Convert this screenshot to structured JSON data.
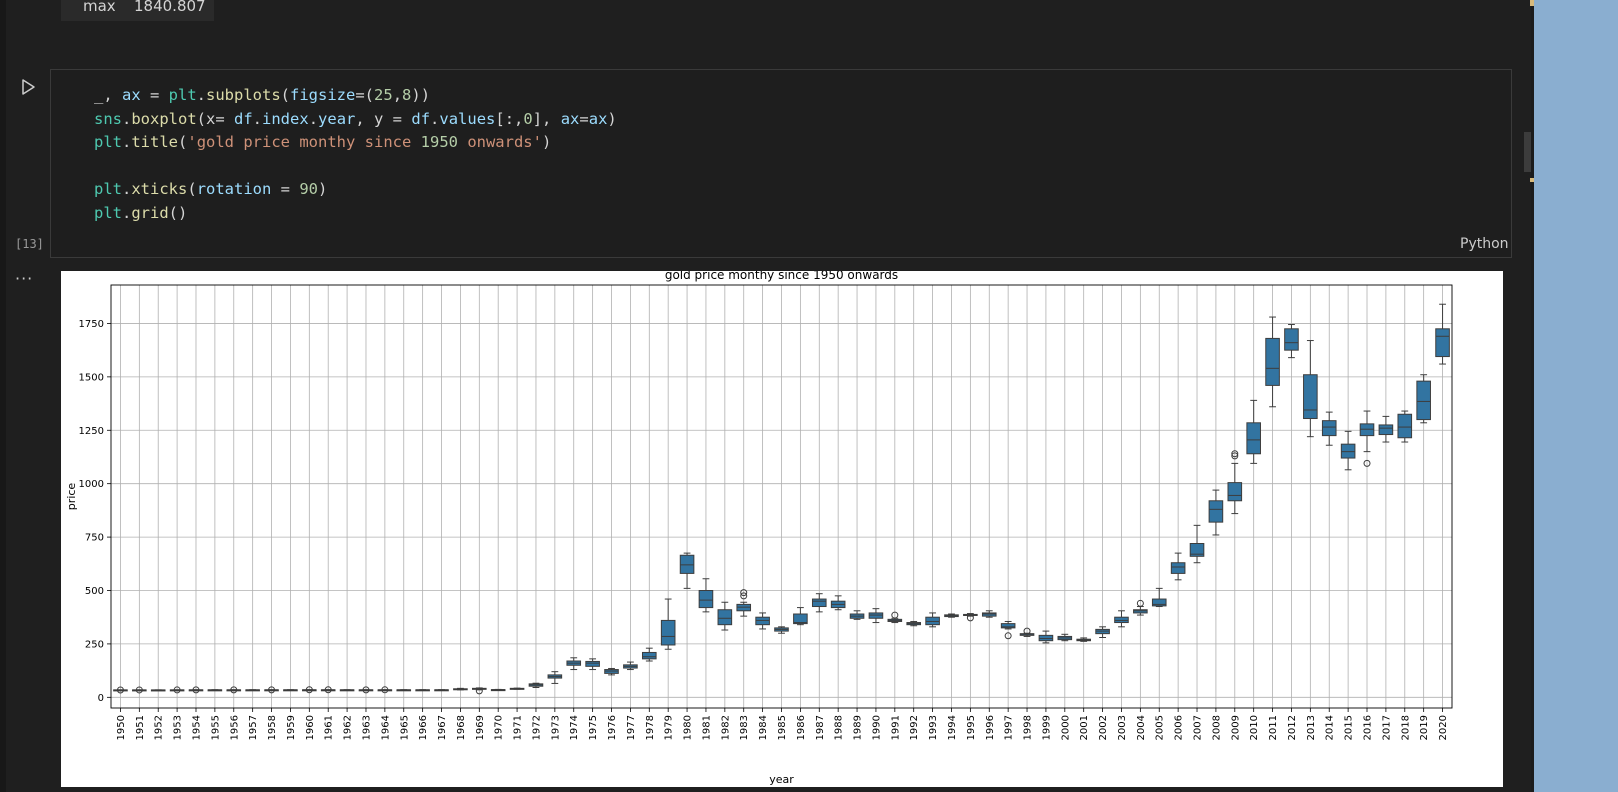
{
  "previous_output": {
    "stat_label": "max",
    "stat_value": "1840.807"
  },
  "cell": {
    "execution_count": "[13]",
    "language": "Python",
    "code_lines": [
      "_, ax = plt.subplots(figsize=(25,8))",
      "sns.boxplot(x= df.index.year, y = df.values[:,0], ax=ax)",
      "plt.title('gold price monthy since 1950 onwards')",
      "",
      "plt.xticks(rotation = 90)",
      "plt.grid()"
    ]
  },
  "icons": {
    "run": "play-icon",
    "more": "ellipsis-icon"
  },
  "colors": {
    "box_fill": "#3274a1",
    "editor_bg": "#1e1e1e",
    "panel_accent": "#8aaed0"
  },
  "chart_data": {
    "type": "boxplot",
    "title": "gold price monthy since 1950 onwards",
    "xlabel": "year",
    "ylabel": "price",
    "ylim": [
      -50,
      1930
    ],
    "yticks": [
      0,
      250,
      500,
      750,
      1000,
      1250,
      1500,
      1750
    ],
    "grid": true,
    "x_tick_rotation": 90,
    "categories": [
      "1950",
      "1951",
      "1952",
      "1953",
      "1954",
      "1955",
      "1956",
      "1957",
      "1958",
      "1959",
      "1960",
      "1961",
      "1962",
      "1963",
      "1964",
      "1965",
      "1966",
      "1967",
      "1968",
      "1969",
      "1970",
      "1971",
      "1972",
      "1973",
      "1974",
      "1975",
      "1976",
      "1977",
      "1978",
      "1979",
      "1980",
      "1981",
      "1982",
      "1983",
      "1984",
      "1985",
      "1986",
      "1987",
      "1988",
      "1989",
      "1990",
      "1991",
      "1992",
      "1993",
      "1994",
      "1995",
      "1996",
      "1997",
      "1998",
      "1999",
      "2000",
      "2001",
      "2002",
      "2003",
      "2004",
      "2005",
      "2006",
      "2007",
      "2008",
      "2009",
      "2010",
      "2011",
      "2012",
      "2013",
      "2014",
      "2015",
      "2016",
      "2017",
      "2018",
      "2019",
      "2020"
    ],
    "boxes": [
      {
        "min": 34.7,
        "q1": 34.7,
        "median": 34.7,
        "q3": 34.7,
        "max": 34.7,
        "outliers": [
          34.4
        ]
      },
      {
        "min": 34.7,
        "q1": 34.7,
        "median": 34.7,
        "q3": 34.7,
        "max": 34.7,
        "outliers": [
          34.5
        ]
      },
      {
        "min": 34.6,
        "q1": 34.6,
        "median": 34.6,
        "q3": 34.6,
        "max": 34.6,
        "outliers": []
      },
      {
        "min": 34.8,
        "q1": 34.8,
        "median": 34.8,
        "q3": 34.8,
        "max": 34.8,
        "outliers": [
          34.6
        ]
      },
      {
        "min": 35.0,
        "q1": 35.0,
        "median": 35.0,
        "q3": 35.0,
        "max": 35.0,
        "outliers": [
          34.8
        ]
      },
      {
        "min": 35.0,
        "q1": 35.0,
        "median": 35.0,
        "q3": 35.0,
        "max": 35.0,
        "outliers": []
      },
      {
        "min": 35.0,
        "q1": 35.0,
        "median": 35.0,
        "q3": 35.0,
        "max": 35.0,
        "outliers": [
          34.9
        ]
      },
      {
        "min": 35.0,
        "q1": 35.0,
        "median": 35.0,
        "q3": 35.0,
        "max": 35.0,
        "outliers": []
      },
      {
        "min": 35.1,
        "q1": 35.1,
        "median": 35.1,
        "q3": 35.1,
        "max": 35.1,
        "outliers": [
          35.0
        ]
      },
      {
        "min": 35.1,
        "q1": 35.1,
        "median": 35.1,
        "q3": 35.1,
        "max": 35.1,
        "outliers": []
      },
      {
        "min": 35.2,
        "q1": 35.2,
        "median": 35.2,
        "q3": 35.2,
        "max": 35.2,
        "outliers": [
          35.5
        ]
      },
      {
        "min": 35.2,
        "q1": 35.2,
        "median": 35.2,
        "q3": 35.2,
        "max": 35.2,
        "outliers": [
          35.5
        ]
      },
      {
        "min": 35.1,
        "q1": 35.1,
        "median": 35.1,
        "q3": 35.1,
        "max": 35.1,
        "outliers": []
      },
      {
        "min": 35.1,
        "q1": 35.1,
        "median": 35.1,
        "q3": 35.1,
        "max": 35.1,
        "outliers": [
          35.0
        ]
      },
      {
        "min": 35.1,
        "q1": 35.1,
        "median": 35.1,
        "q3": 35.1,
        "max": 35.1,
        "outliers": [
          35.2
        ]
      },
      {
        "min": 35.1,
        "q1": 35.1,
        "median": 35.1,
        "q3": 35.1,
        "max": 35.1,
        "outliers": []
      },
      {
        "min": 35.1,
        "q1": 35.1,
        "median": 35.1,
        "q3": 35.1,
        "max": 35.1,
        "outliers": []
      },
      {
        "min": 35.2,
        "q1": 35.2,
        "median": 35.2,
        "q3": 35.2,
        "max": 35.2,
        "outliers": []
      },
      {
        "min": 35,
        "q1": 37,
        "median": 39,
        "q3": 40,
        "max": 42,
        "outliers": []
      },
      {
        "min": 35,
        "q1": 38,
        "median": 41,
        "q3": 42,
        "max": 44,
        "outliers": [
          30
        ]
      },
      {
        "min": 35,
        "q1": 35,
        "median": 36,
        "q3": 36,
        "max": 37,
        "outliers": []
      },
      {
        "min": 38,
        "q1": 40,
        "median": 41,
        "q3": 42,
        "max": 43,
        "outliers": []
      },
      {
        "min": 46,
        "q1": 52,
        "median": 58,
        "q3": 63,
        "max": 66,
        "outliers": []
      },
      {
        "min": 65,
        "q1": 90,
        "median": 97,
        "q3": 105,
        "max": 120,
        "outliers": []
      },
      {
        "min": 130,
        "q1": 150,
        "median": 160,
        "q3": 170,
        "max": 185,
        "outliers": []
      },
      {
        "min": 130,
        "q1": 145,
        "median": 160,
        "q3": 168,
        "max": 180,
        "outliers": []
      },
      {
        "min": 105,
        "q1": 112,
        "median": 123,
        "q3": 130,
        "max": 135,
        "outliers": []
      },
      {
        "min": 130,
        "q1": 137,
        "median": 145,
        "q3": 152,
        "max": 165,
        "outliers": []
      },
      {
        "min": 170,
        "q1": 180,
        "median": 190,
        "q3": 210,
        "max": 230,
        "outliers": []
      },
      {
        "min": 225,
        "q1": 245,
        "median": 285,
        "q3": 360,
        "max": 460,
        "outliers": []
      },
      {
        "min": 510,
        "q1": 580,
        "median": 620,
        "q3": 665,
        "max": 675,
        "outliers": []
      },
      {
        "min": 400,
        "q1": 420,
        "median": 455,
        "q3": 500,
        "max": 555,
        "outliers": []
      },
      {
        "min": 315,
        "q1": 340,
        "median": 370,
        "q3": 410,
        "max": 445,
        "outliers": []
      },
      {
        "min": 380,
        "q1": 405,
        "median": 422,
        "q3": 435,
        "max": 445,
        "outliers": [
          475,
          490
        ]
      },
      {
        "min": 320,
        "q1": 340,
        "median": 360,
        "q3": 375,
        "max": 395,
        "outliers": []
      },
      {
        "min": 300,
        "q1": 310,
        "median": 318,
        "q3": 325,
        "max": 330,
        "outliers": []
      },
      {
        "min": 340,
        "q1": 345,
        "median": 350,
        "q3": 390,
        "max": 420,
        "outliers": []
      },
      {
        "min": 400,
        "q1": 425,
        "median": 450,
        "q3": 460,
        "max": 485,
        "outliers": []
      },
      {
        "min": 410,
        "q1": 420,
        "median": 435,
        "q3": 450,
        "max": 475,
        "outliers": []
      },
      {
        "min": 365,
        "q1": 370,
        "median": 380,
        "q3": 390,
        "max": 405,
        "outliers": []
      },
      {
        "min": 350,
        "q1": 370,
        "median": 385,
        "q3": 395,
        "max": 415,
        "outliers": []
      },
      {
        "min": 350,
        "q1": 355,
        "median": 360,
        "q3": 365,
        "max": 370,
        "outliers": [
          385
        ]
      },
      {
        "min": 335,
        "q1": 340,
        "median": 345,
        "q3": 350,
        "max": 355,
        "outliers": []
      },
      {
        "min": 330,
        "q1": 340,
        "median": 355,
        "q3": 375,
        "max": 395,
        "outliers": []
      },
      {
        "min": 375,
        "q1": 378,
        "median": 382,
        "q3": 386,
        "max": 390,
        "outliers": []
      },
      {
        "min": 380,
        "q1": 383,
        "median": 385,
        "q3": 388,
        "max": 392,
        "outliers": [
          372
        ]
      },
      {
        "min": 375,
        "q1": 380,
        "median": 390,
        "q3": 395,
        "max": 405,
        "outliers": []
      },
      {
        "min": 320,
        "q1": 325,
        "median": 330,
        "q3": 345,
        "max": 355,
        "outliers": [
          288
        ]
      },
      {
        "min": 285,
        "q1": 290,
        "median": 295,
        "q3": 298,
        "max": 300,
        "outliers": [
          310
        ]
      },
      {
        "min": 255,
        "q1": 265,
        "median": 275,
        "q3": 290,
        "max": 310,
        "outliers": []
      },
      {
        "min": 265,
        "q1": 270,
        "median": 278,
        "q3": 285,
        "max": 295,
        "outliers": []
      },
      {
        "min": 262,
        "q1": 265,
        "median": 268,
        "q3": 272,
        "max": 278,
        "outliers": []
      },
      {
        "min": 280,
        "q1": 298,
        "median": 310,
        "q3": 318,
        "max": 330,
        "outliers": []
      },
      {
        "min": 330,
        "q1": 350,
        "median": 360,
        "q3": 375,
        "max": 405,
        "outliers": []
      },
      {
        "min": 385,
        "q1": 395,
        "median": 405,
        "q3": 410,
        "max": 425,
        "outliers": [
          440
        ]
      },
      {
        "min": 425,
        "q1": 428,
        "median": 435,
        "q3": 460,
        "max": 510,
        "outliers": []
      },
      {
        "min": 550,
        "q1": 580,
        "median": 610,
        "q3": 630,
        "max": 675,
        "outliers": []
      },
      {
        "min": 630,
        "q1": 660,
        "median": 670,
        "q3": 720,
        "max": 805,
        "outliers": []
      },
      {
        "min": 760,
        "q1": 820,
        "median": 880,
        "q3": 920,
        "max": 970,
        "outliers": []
      },
      {
        "min": 860,
        "q1": 920,
        "median": 945,
        "q3": 1005,
        "max": 1095,
        "outliers": [
          1130,
          1140
        ]
      },
      {
        "min": 1095,
        "q1": 1140,
        "median": 1205,
        "q3": 1285,
        "max": 1390,
        "outliers": []
      },
      {
        "min": 1360,
        "q1": 1460,
        "median": 1540,
        "q3": 1680,
        "max": 1780,
        "outliers": []
      },
      {
        "min": 1590,
        "q1": 1625,
        "median": 1660,
        "q3": 1725,
        "max": 1745,
        "outliers": []
      },
      {
        "min": 1220,
        "q1": 1305,
        "median": 1345,
        "q3": 1510,
        "max": 1670,
        "outliers": []
      },
      {
        "min": 1180,
        "q1": 1225,
        "median": 1265,
        "q3": 1295,
        "max": 1335,
        "outliers": []
      },
      {
        "min": 1065,
        "q1": 1120,
        "median": 1150,
        "q3": 1185,
        "max": 1245,
        "outliers": []
      },
      {
        "min": 1150,
        "q1": 1225,
        "median": 1255,
        "q3": 1280,
        "max": 1340,
        "outliers": [
          1095
        ]
      },
      {
        "min": 1195,
        "q1": 1230,
        "median": 1260,
        "q3": 1275,
        "max": 1315,
        "outliers": []
      },
      {
        "min": 1195,
        "q1": 1215,
        "median": 1265,
        "q3": 1325,
        "max": 1340,
        "outliers": []
      },
      {
        "min": 1285,
        "q1": 1300,
        "median": 1385,
        "q3": 1480,
        "max": 1510,
        "outliers": []
      },
      {
        "min": 1560,
        "q1": 1595,
        "median": 1690,
        "q3": 1725,
        "max": 1840,
        "outliers": []
      }
    ]
  }
}
